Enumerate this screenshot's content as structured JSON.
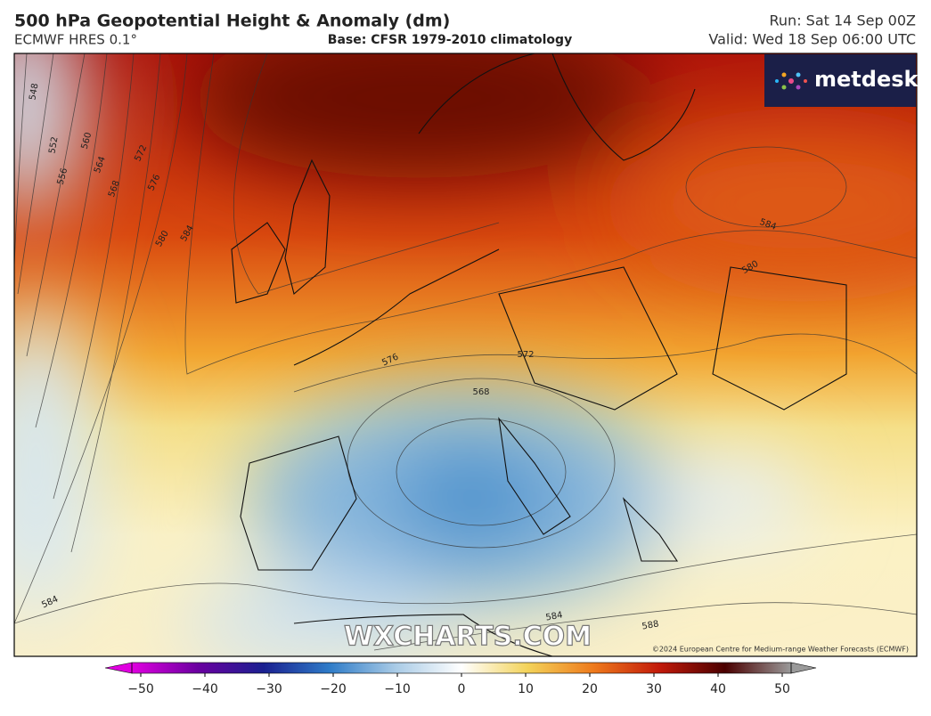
{
  "header": {
    "title": "500 hPa Geopotential Height & Anomaly (dm)",
    "model": "ECMWF HRES 0.1°",
    "base": "Base: CFSR 1979-2010 climatology",
    "run": "Run: Sat 14 Sep 00Z",
    "valid": "Valid: Wed 18 Sep 06:00 UTC"
  },
  "logo": "metdesk",
  "watermark": "WXCHARTS.COM",
  "copyright": "©2024 European Centre for Medium-range Weather Forecasts (ECMWF)",
  "contour_labels": [
    548,
    552,
    556,
    560,
    564,
    568,
    572,
    576,
    580,
    584,
    584,
    580,
    576,
    572,
    568,
    584,
    584,
    588
  ],
  "colorbar": {
    "ticks": [
      {
        "value": -50,
        "label": "−50"
      },
      {
        "value": -40,
        "label": "−40"
      },
      {
        "value": -30,
        "label": "−30"
      },
      {
        "value": -20,
        "label": "−20"
      },
      {
        "value": -10,
        "label": "−10"
      },
      0,
      10,
      20,
      30,
      40,
      50
    ],
    "colors": [
      "#e000e0",
      "#6a00a0",
      "#1a2090",
      "#2f7cc8",
      "#a9cbe6",
      "#ffffff",
      "#f3d35a",
      "#ee7a1c",
      "#c21a0a",
      "#4a0000",
      "#9a9a9a"
    ]
  }
}
